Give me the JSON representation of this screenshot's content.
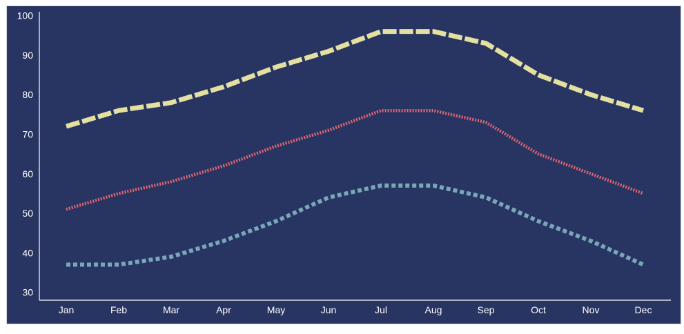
{
  "chart_data": {
    "type": "line",
    "title": "",
    "xlabel": "",
    "ylabel": "",
    "categories": [
      "Jan",
      "Feb",
      "Mar",
      "Apr",
      "May",
      "Jun",
      "Jul",
      "Aug",
      "Sep",
      "Oct",
      "Nov",
      "Dec"
    ],
    "ylim": [
      28,
      101
    ],
    "yticks": [
      30,
      40,
      50,
      60,
      70,
      80,
      90,
      100
    ],
    "grid": false,
    "legend": "none",
    "series": [
      {
        "values": [
          72,
          76,
          78,
          82,
          87,
          91,
          96,
          96,
          93,
          85,
          80,
          76
        ],
        "color": "#e3e0a0",
        "style": "long-dash"
      },
      {
        "values": [
          51,
          55,
          58,
          62,
          67,
          71,
          76,
          76,
          73,
          65,
          60,
          55
        ],
        "color": "#e36670",
        "style": "fine-dot"
      },
      {
        "values": [
          37,
          37,
          39,
          43,
          48,
          54,
          57,
          57,
          54,
          48,
          43,
          37
        ],
        "color": "#7aa7b6",
        "style": "dot"
      }
    ]
  }
}
